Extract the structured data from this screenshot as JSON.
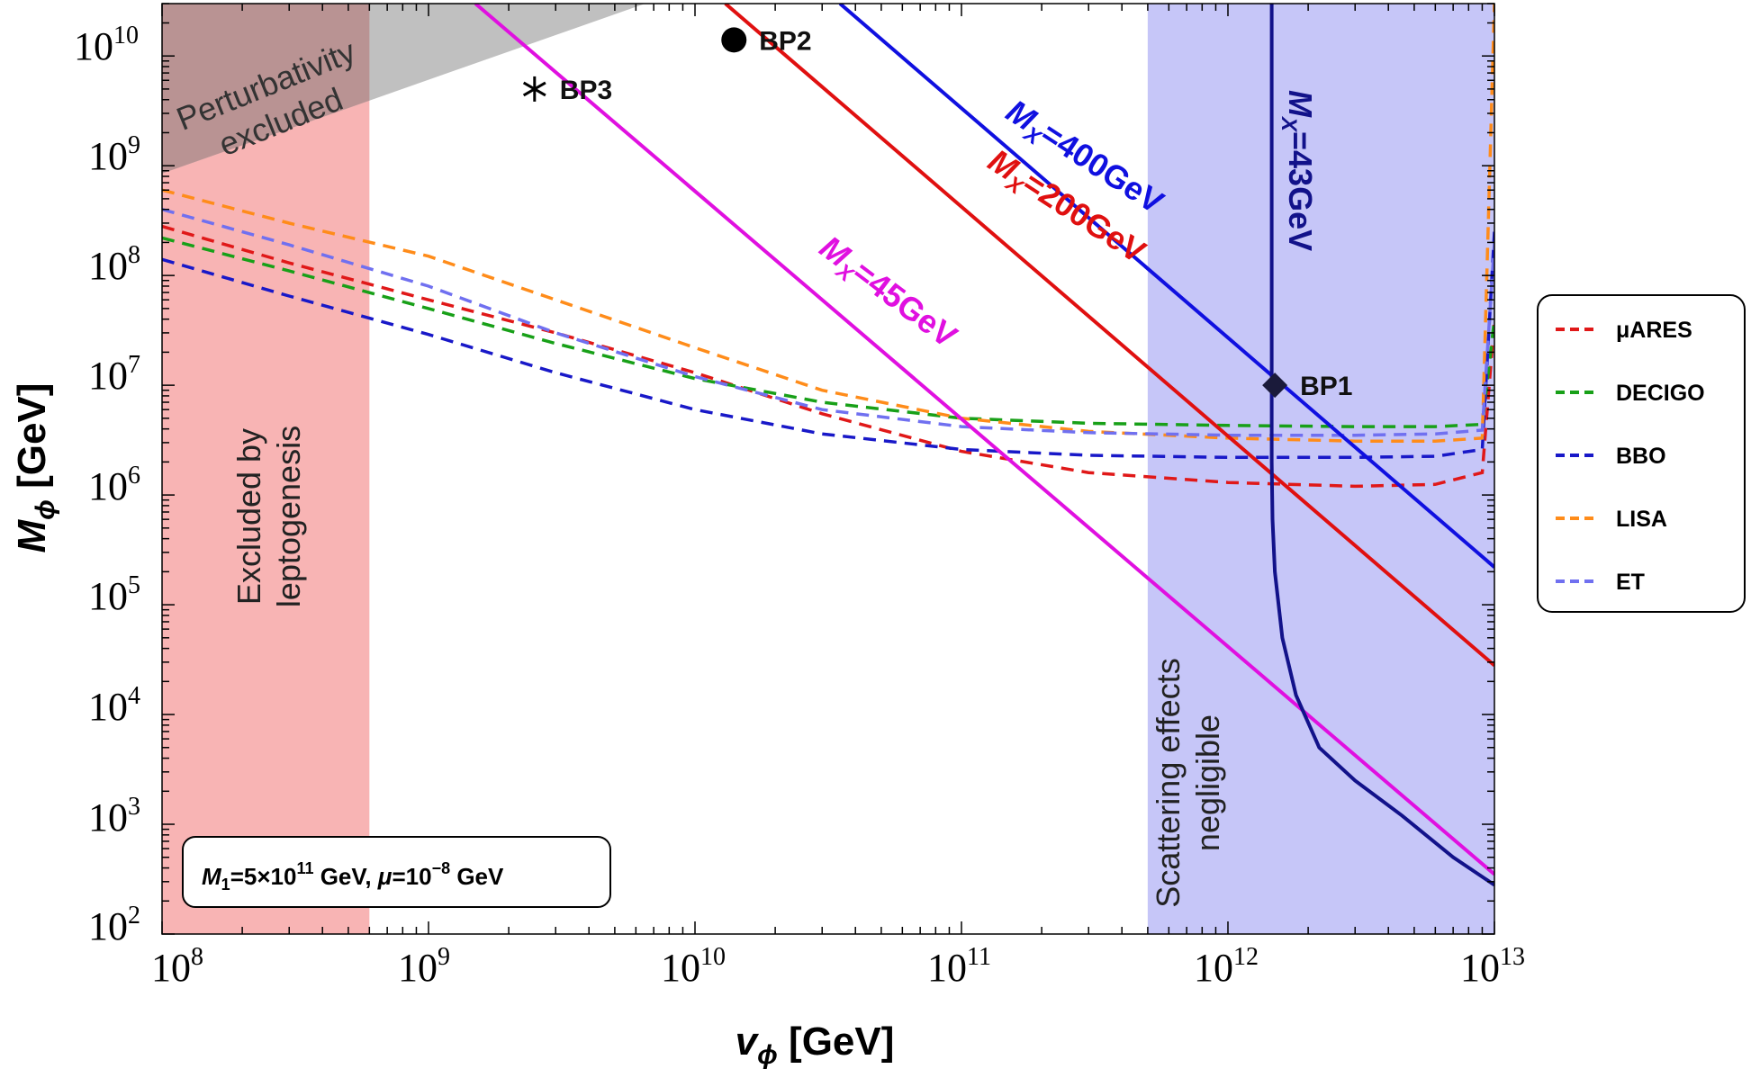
{
  "chart_data": {
    "type": "line",
    "xlabel": "v_ϕ [GeV]",
    "ylabel": "M_ϕ [GeV]",
    "xscale": "log",
    "yscale": "log",
    "xlim": [
      100000000.0,
      10000000000000.0
    ],
    "ylim": [
      100,
      30000000000.0
    ],
    "x_ticks": [
      {
        "base": "10",
        "exp": "8"
      },
      {
        "base": "10",
        "exp": "9"
      },
      {
        "base": "10",
        "exp": "10"
      },
      {
        "base": "10",
        "exp": "11"
      },
      {
        "base": "10",
        "exp": "12"
      },
      {
        "base": "10",
        "exp": "13"
      }
    ],
    "y_ticks": [
      {
        "base": "10",
        "exp": "2"
      },
      {
        "base": "10",
        "exp": "3"
      },
      {
        "base": "10",
        "exp": "4"
      },
      {
        "base": "10",
        "exp": "5"
      },
      {
        "base": "10",
        "exp": "6"
      },
      {
        "base": "10",
        "exp": "7"
      },
      {
        "base": "10",
        "exp": "8"
      },
      {
        "base": "10",
        "exp": "9"
      },
      {
        "base": "10",
        "exp": "10"
      }
    ],
    "regions": [
      {
        "name": "Perturbativity excluded",
        "color": "#b0b0b0"
      },
      {
        "name": "Excluded by leptogenesis",
        "color": "#f8b4b4",
        "x_range": [
          100000000.0,
          600000000.0
        ]
      },
      {
        "name": "Scattering effects negligible",
        "color": "#b3b3f5",
        "x_range": [
          500000000000.0,
          10000000000000.0
        ]
      }
    ],
    "region_labels": {
      "perturbativity": [
        "Perturbativity",
        "excluded"
      ],
      "leptogenesis": [
        "Excluded by",
        "leptogenesis"
      ],
      "scattering": [
        "Scattering effects",
        "negligible"
      ]
    },
    "mass_lines": [
      {
        "label": "M_X=400GeV",
        "color": "#1010e0",
        "x": [
          35000000000.0,
          10000000000000.0
        ],
        "y": [
          30000000000.0,
          220000.0
        ]
      },
      {
        "label": "M_X=200GeV",
        "color": "#e01010",
        "x": [
          13000000000.0,
          10000000000000.0
        ],
        "y": [
          30000000000.0,
          28000.0
        ]
      },
      {
        "label": "M_X=45GeV",
        "color": "#e010e0",
        "x": [
          1500000000.0,
          10000000000000.0
        ],
        "y": [
          30000000000.0,
          350
        ]
      }
    ],
    "mass_line_labels": {
      "m400": {
        "mx": "M",
        "sub": "X",
        "val": "=400GeV"
      },
      "m200": {
        "mx": "M",
        "sub": "X",
        "val": "=200GeV"
      },
      "m45": {
        "mx": "M",
        "sub": "X",
        "val": "=45GeV"
      },
      "m43": {
        "mx": "M",
        "sub": "X",
        "val": "=43GeV"
      }
    },
    "m43_curve": {
      "label": "M_X=43GeV",
      "color": "#12128a",
      "x": [
        1460000000000.0,
        1460000000000.0,
        1460000000000.0,
        1470000000000.0,
        1500000000000.0,
        1600000000000.0,
        1800000000000.0,
        2200000000000.0,
        3000000000000.0,
        4500000000000.0,
        7000000000000.0,
        10000000000000.0
      ],
      "y": [
        30000000000.0,
        100000000.0,
        2000000.0,
        600000.0,
        200000.0,
        50000.0,
        15000.0,
        5000.0,
        2500.0,
        1200.0,
        500,
        280
      ]
    },
    "series": [
      {
        "name": "μARES",
        "color": "#e01818",
        "x": [
          100000000.0,
          300000000.0,
          1000000000.0,
          3000000000.0,
          10000000000.0,
          30000000000.0,
          100000000000.0,
          300000000000.0,
          1000000000000.0,
          3000000000000.0,
          6000000000000.0,
          9000000000000.0,
          10000000000000.0
        ],
        "y": [
          280000000.0,
          130000000.0,
          60000000.0,
          30000000.0,
          13000000.0,
          5500000.0,
          2500000.0,
          1600000.0,
          1300000.0,
          1200000.0,
          1250000.0,
          1600000.0,
          40000000.0
        ]
      },
      {
        "name": "DECIGO",
        "color": "#18a018",
        "x": [
          100000000.0,
          300000000.0,
          1000000000.0,
          3000000000.0,
          10000000000.0,
          30000000000.0,
          100000000000.0,
          300000000000.0,
          1000000000000.0,
          3000000000000.0,
          6000000000000.0,
          9000000000000.0,
          10000000000000.0
        ],
        "y": [
          220000000.0,
          110000000.0,
          50000000.0,
          24000000.0,
          11500000.0,
          7000000.0,
          5000000.0,
          4500000.0,
          4300000.0,
          4200000.0,
          4200000.0,
          4400000.0,
          40000000.0
        ]
      },
      {
        "name": "BBO",
        "color": "#1818c8",
        "x": [
          100000000.0,
          300000000.0,
          1000000000.0,
          3000000000.0,
          10000000000.0,
          30000000000.0,
          100000000000.0,
          300000000000.0,
          1000000000000.0,
          3000000000000.0,
          6000000000000.0,
          9000000000000.0,
          10000000000000.0
        ],
        "y": [
          140000000.0,
          65000000.0,
          29000000.0,
          13000000.0,
          6000000.0,
          3600000.0,
          2600000.0,
          2300000.0,
          2200000.0,
          2200000.0,
          2250000.0,
          2600000.0,
          250000000.0
        ]
      },
      {
        "name": "LISA",
        "color": "#ff8c1a",
        "x": [
          100000000.0,
          300000000.0,
          1000000000.0,
          3000000000.0,
          10000000000.0,
          30000000000.0,
          100000000000.0,
          300000000000.0,
          1000000000000.0,
          3000000000000.0,
          6000000000000.0,
          9000000000000.0,
          10000000000000.0
        ],
        "y": [
          600000000.0,
          300000000.0,
          150000000.0,
          60000000.0,
          22000000.0,
          9000000.0,
          5000000.0,
          3800000.0,
          3300000.0,
          3100000.0,
          3100000.0,
          3300000.0,
          30000000000.0
        ]
      },
      {
        "name": "ET",
        "color": "#7070f0",
        "x": [
          100000000.0,
          300000000.0,
          1000000000.0,
          3000000000.0,
          10000000000.0,
          30000000000.0,
          100000000000.0,
          300000000000.0,
          1000000000000.0,
          3000000000000.0,
          6000000000000.0,
          9000000000000.0,
          10000000000000.0
        ],
        "y": [
          400000000.0,
          190000000.0,
          80000000.0,
          30000000.0,
          12000000.0,
          6000000.0,
          4200000.0,
          3700000.0,
          3500000.0,
          3500000.0,
          3600000.0,
          3900000.0,
          200000000.0
        ]
      }
    ],
    "benchmarks": [
      {
        "name": "BP1",
        "x": 1500000000000.0,
        "y": 10000000.0,
        "marker": "diamond"
      },
      {
        "name": "BP2",
        "x": 14000000000.0,
        "y": 14000000000.0,
        "marker": "circle"
      },
      {
        "name": "BP3",
        "x": 2500000000.0,
        "y": 5000000000.0,
        "marker": "star"
      }
    ],
    "note": {
      "m1": "M",
      "m1sub": "1",
      "eq1": "=5×10",
      "e1": "11",
      "mid": " GeV, ",
      "mu": "μ",
      "eq2": "=10",
      "e2": "−8",
      "end": " GeV"
    },
    "legend": {
      "position": "right"
    }
  }
}
